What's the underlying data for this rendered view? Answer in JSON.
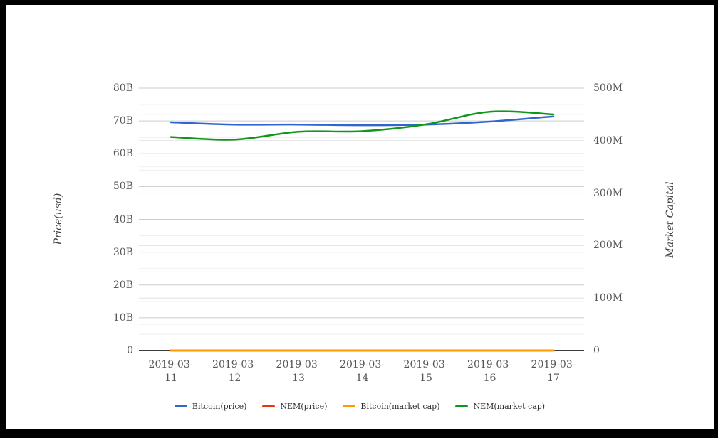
{
  "chart_data": {
    "type": "line",
    "title": "",
    "x": [
      "2019-03-11",
      "2019-03-12",
      "2019-03-13",
      "2019-03-14",
      "2019-03-15",
      "2019-03-16",
      "2019-03-17"
    ],
    "ylabel_left": "Price(usd)",
    "ylabel_right": "Market Capital",
    "left_axis": {
      "ticks": [
        "0",
        "10B",
        "20B",
        "30B",
        "40B",
        "50B",
        "60B",
        "70B",
        "80B"
      ],
      "range": [
        0,
        80000000000
      ]
    },
    "right_axis": {
      "ticks": [
        "0",
        "100M",
        "200M",
        "300M",
        "400M",
        "500M"
      ],
      "range": [
        0,
        500000000
      ]
    },
    "series": [
      {
        "name": "Bitcoin(price)",
        "color": "#3366cc",
        "axis": "left",
        "unit": "B",
        "values": [
          69.6,
          68.9,
          68.9,
          68.7,
          68.9,
          69.8,
          71.4
        ]
      },
      {
        "name": "NEM(price)",
        "color": "#dc3912",
        "axis": "left",
        "unit": "B",
        "values": [
          0,
          0,
          0,
          0,
          0,
          0,
          0
        ]
      },
      {
        "name": "Bitcoin(market cap)",
        "color": "#ff9900",
        "axis": "right",
        "unit": "M",
        "values": [
          0,
          0,
          0,
          0,
          0,
          0,
          0
        ]
      },
      {
        "name": "NEM(market cap)",
        "color": "#109618",
        "axis": "right",
        "unit": "M",
        "values": [
          407,
          402,
          417,
          418,
          431,
          455,
          450
        ]
      }
    ],
    "legend_position": "bottom",
    "grid": true,
    "grid_colors": {
      "left_major": "#cccccc",
      "left_minor": "#ededed",
      "right_major": "#e0e0e0",
      "right_minor": "#f1f1f1",
      "baseline": "#3b3b3b"
    }
  }
}
